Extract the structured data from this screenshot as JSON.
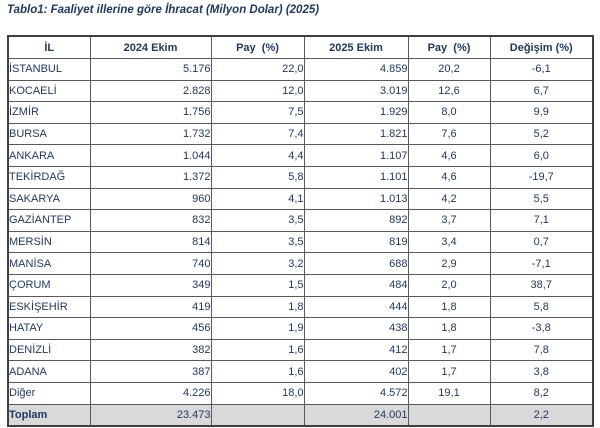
{
  "title": "Tablo1: Faaliyet illerine göre İhracat (Milyon Dolar) (2025)",
  "table": {
    "headers": [
      "İL",
      "2024 Ekim",
      "Pay  (%)",
      "2025 Ekim",
      "Pay  (%)",
      "Değişim (%)"
    ],
    "rows": [
      {
        "cells": [
          "İSTANBUL",
          "5.176",
          "22,0",
          "4.859",
          "20,2",
          "-6,1"
        ]
      },
      {
        "cells": [
          "KOCAELİ",
          "2.828",
          "12,0",
          "3.019",
          "12,6",
          "6,7"
        ]
      },
      {
        "cells": [
          "İZMİR",
          "1.756",
          "7,5",
          "1.929",
          "8,0",
          "9,9"
        ]
      },
      {
        "cells": [
          "BURSA",
          "1.732",
          "7,4",
          "1.821",
          "7,6",
          "5,2"
        ]
      },
      {
        "cells": [
          "ANKARA",
          "1.044",
          "4,4",
          "1.107",
          "4,6",
          "6,0"
        ]
      },
      {
        "cells": [
          "TEKİRDAĞ",
          "1.372",
          "5,8",
          "1.101",
          "4,6",
          "-19,7"
        ]
      },
      {
        "cells": [
          "SAKARYA",
          "960",
          "4,1",
          "1.013",
          "4,2",
          "5,5"
        ]
      },
      {
        "cells": [
          "GAZİANTEP",
          "832",
          "3,5",
          "892",
          "3,7",
          "7,1"
        ]
      },
      {
        "cells": [
          "MERSİN",
          "814",
          "3,5",
          "819",
          "3,4",
          "0,7"
        ]
      },
      {
        "cells": [
          "MANİSA",
          "740",
          "3,2",
          "688",
          "2,9",
          "-7,1"
        ]
      },
      {
        "cells": [
          "ÇORUM",
          "349",
          "1,5",
          "484",
          "2,0",
          "38,7"
        ]
      },
      {
        "cells": [
          "ESKİŞEHİR",
          "419",
          "1,8",
          "444",
          "1,8",
          "5,8"
        ]
      },
      {
        "cells": [
          "HATAY",
          "456",
          "1,9",
          "438",
          "1,8",
          "-3,8"
        ]
      },
      {
        "cells": [
          "DENİZLİ",
          "382",
          "1,6",
          "412",
          "1,7",
          "7,8"
        ]
      },
      {
        "cells": [
          "ADANA",
          "387",
          "1,6",
          "402",
          "1,7",
          "3,8"
        ]
      },
      {
        "cells": [
          "Diğer",
          "4.226",
          "18,0",
          "4.572",
          "19,1",
          "8,2"
        ]
      },
      {
        "cells": [
          "Toplam",
          "23.473",
          "",
          "24.001",
          "",
          "2,2"
        ],
        "is_total": true
      }
    ]
  },
  "colors": {
    "text": "#1f3864",
    "label_column_bg": "#f2f2f2",
    "total_row_bg": "#d9d9d9",
    "inner_border": "#595959",
    "outer_border": "#404040"
  }
}
